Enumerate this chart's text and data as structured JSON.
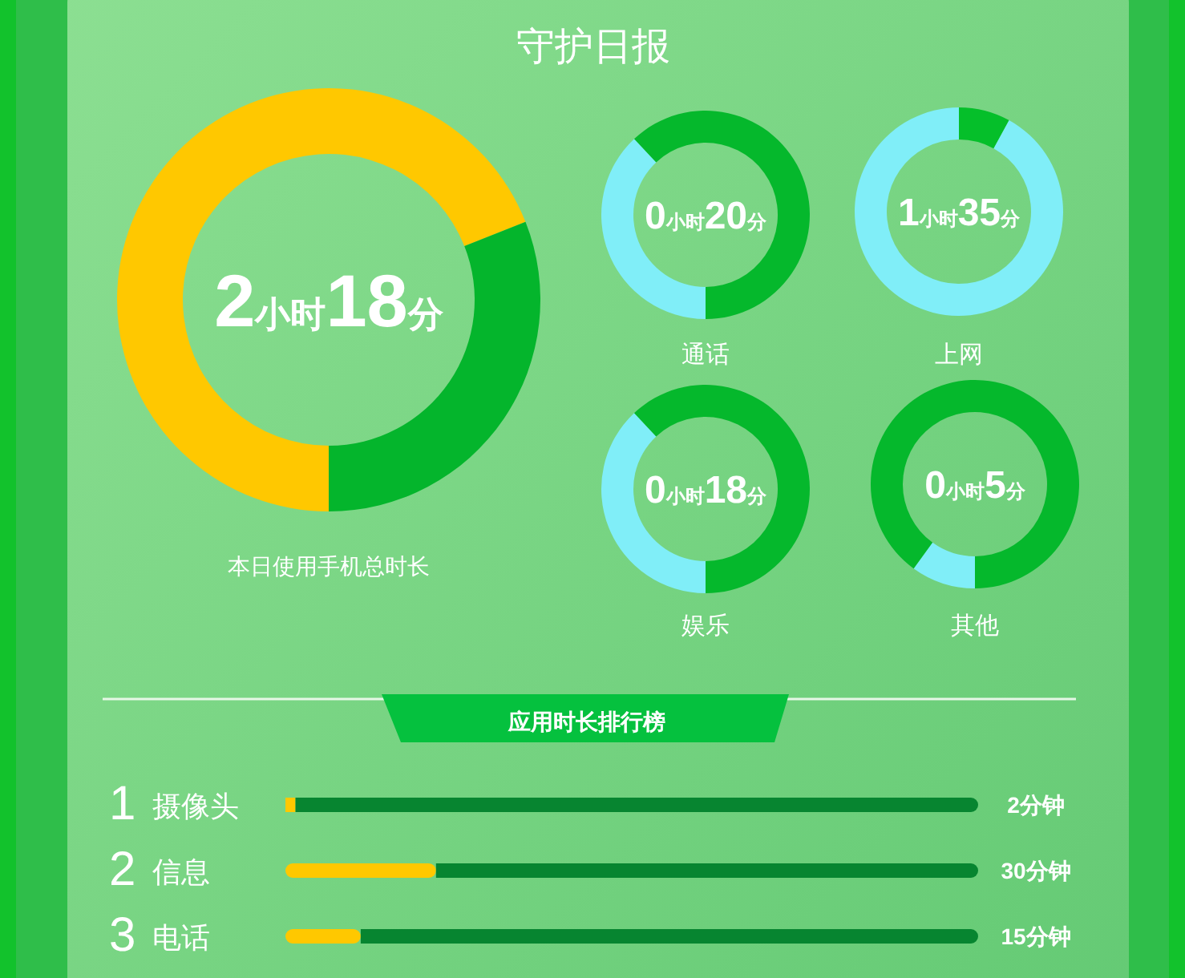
{
  "chart_data": [
    {
      "type": "donut",
      "title": "守护日报",
      "categories": [
        null,
        null
      ],
      "values": [
        69,
        31
      ],
      "colors": [
        "#ffc800",
        "#04b52c"
      ],
      "annotations": [
        "2小时18分",
        "本日使用手机总时长"
      ]
    },
    {
      "type": "donut",
      "title": "通话",
      "categories": [
        null,
        null
      ],
      "values": [
        38,
        62
      ],
      "colors": [
        "#80eef8",
        "#05b82c"
      ],
      "annotations": [
        "0小时20分"
      ]
    },
    {
      "type": "donut",
      "title": "上网",
      "categories": [
        null,
        null
      ],
      "values": [
        8,
        92
      ],
      "colors": [
        "#05bf2a",
        "#80eef8"
      ],
      "annotations": [
        "1小时35分"
      ]
    },
    {
      "type": "donut",
      "title": "娱乐",
      "categories": [
        null,
        null
      ],
      "values": [
        38,
        62
      ],
      "colors": [
        "#80eef8",
        "#05b82c"
      ],
      "annotations": [
        "0小时18分"
      ]
    },
    {
      "type": "donut",
      "title": "其他",
      "categories": [
        null,
        null
      ],
      "values": [
        10,
        90
      ],
      "colors": [
        "#80eef8",
        "#05b82c"
      ],
      "annotations": [
        "0小时5分"
      ]
    },
    {
      "type": "bar",
      "orientation": "horizontal",
      "stacked": true,
      "title": "应用时长排行榜",
      "categories": [
        "1 摄像头",
        "2 信息",
        "3 电话"
      ],
      "xlim": [
        0,
        138
      ],
      "series": [
        {
          "color": "#ffc800",
          "values": [
            2,
            30,
            15
          ],
          "value_labels": [
            "2分钟",
            "30分钟",
            "15分钟"
          ]
        },
        {
          "color": "#078530",
          "values": [
            136,
            108,
            123
          ]
        }
      ]
    }
  ]
}
